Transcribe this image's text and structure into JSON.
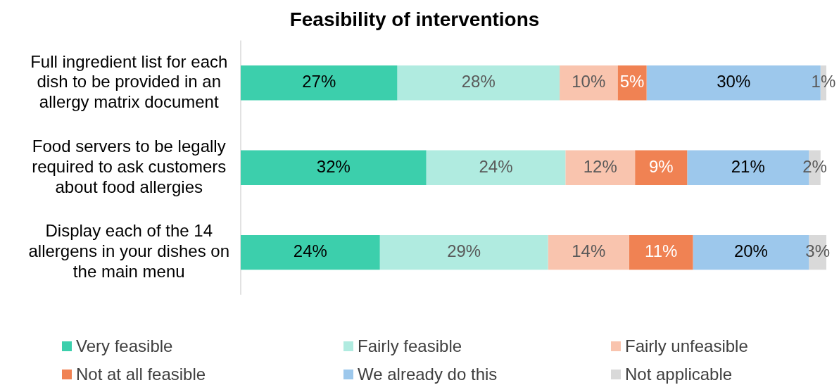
{
  "chart_data": {
    "type": "bar",
    "orientation": "horizontal",
    "stacked": true,
    "title": "Feasibility of interventions",
    "categories": [
      "Full ingredient list for each dish to be provided in an allergy matrix document",
      "Food servers to be legally required to ask customers about food allergies",
      "Display each of the 14 allergens in your dishes on the main menu"
    ],
    "series": [
      {
        "name": "Very feasible",
        "color": "#3ccfac",
        "values": [
          27,
          32,
          24
        ],
        "value_labels": [
          "27%",
          "32%",
          "24%"
        ]
      },
      {
        "name": "Fairly feasible",
        "color": "#b0ebe0",
        "values": [
          28,
          24,
          29
        ],
        "value_labels": [
          "28%",
          "24%",
          "29%"
        ]
      },
      {
        "name": "Fairly unfeasible",
        "color": "#f9c4ae",
        "values": [
          10,
          12,
          14
        ],
        "value_labels": [
          "10%",
          "12%",
          "14%"
        ]
      },
      {
        "name": "Not at all feasible",
        "color": "#f08253",
        "values": [
          5,
          9,
          11
        ],
        "value_labels": [
          "5%",
          "9%",
          "11%"
        ]
      },
      {
        "name": "We already do this",
        "color": "#9dc8ec",
        "values": [
          30,
          21,
          20
        ],
        "value_labels": [
          "30%",
          "21%",
          "20%"
        ]
      },
      {
        "name": "Not applicable",
        "color": "#d9d9d9",
        "values": [
          1,
          2,
          3
        ],
        "value_labels": [
          "1%",
          "2%",
          "3%"
        ]
      }
    ],
    "legend": "bottom"
  }
}
